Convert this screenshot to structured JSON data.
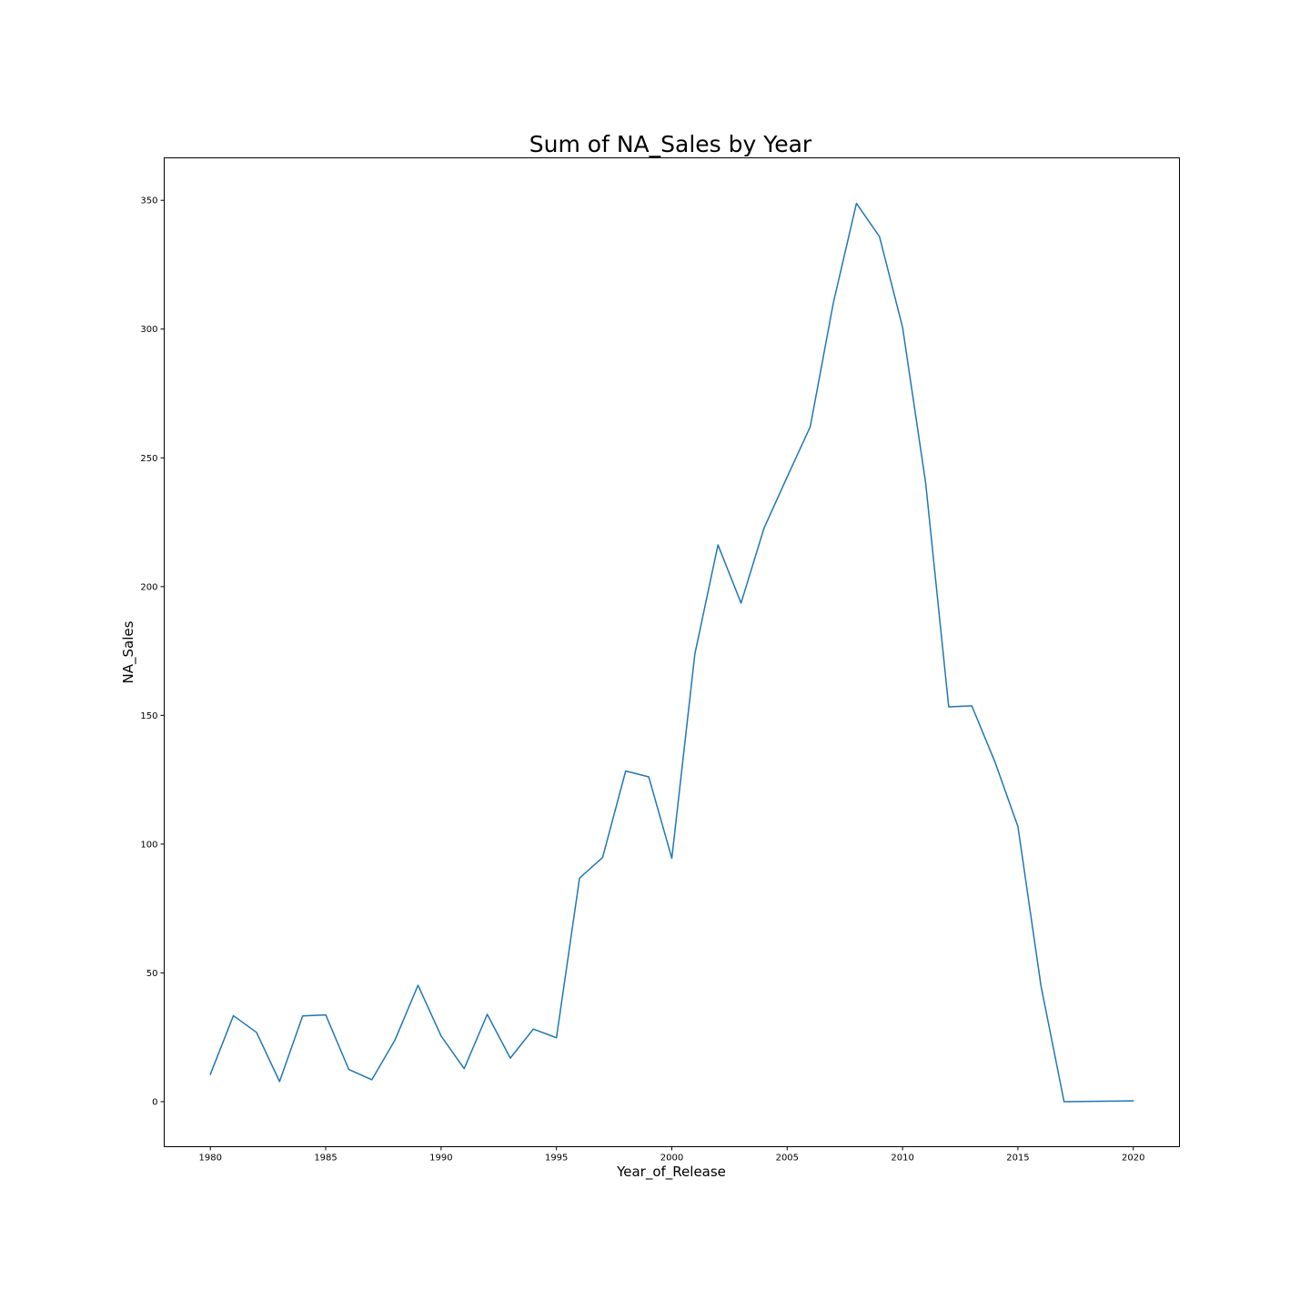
{
  "chart_data": {
    "type": "line",
    "title": "Sum of NA_Sales by Year",
    "xlabel": "Year_of_Release",
    "ylabel": "NA_Sales",
    "xlim": [
      1978,
      2022
    ],
    "ylim": [
      -17.5,
      366.5
    ],
    "xticks": [
      "1980",
      "1985",
      "1990",
      "1995",
      "2000",
      "2005",
      "2010",
      "2015",
      "2020"
    ],
    "yticks": [
      "0",
      "50",
      "100",
      "150",
      "200",
      "250",
      "300",
      "350"
    ],
    "grid": false,
    "legend": "none",
    "series": [
      {
        "color": "#1f77b4",
        "x": [
          1980,
          1981,
          1982,
          1983,
          1984,
          1985,
          1986,
          1987,
          1988,
          1989,
          1990,
          1991,
          1992,
          1993,
          1994,
          1995,
          1996,
          1997,
          1998,
          1999,
          2000,
          2001,
          2002,
          2003,
          2004,
          2005,
          2006,
          2007,
          2008,
          2009,
          2010,
          2011,
          2012,
          2013,
          2014,
          2015,
          2016,
          2017,
          2020
        ],
        "y": [
          10.6,
          33.4,
          26.9,
          7.8,
          33.3,
          33.7,
          12.5,
          8.5,
          23.9,
          45.2,
          25.5,
          12.8,
          33.9,
          16.9,
          28.2,
          24.8,
          86.8,
          94.8,
          128.4,
          126.1,
          94.5,
          173.9,
          216.2,
          193.6,
          222.8,
          242.6,
          262.1,
          310.2,
          348.8,
          335.9,
          300.7,
          240.3,
          153.3,
          153.7,
          132.0,
          106.8,
          44.9,
          0.0,
          0.3
        ]
      }
    ]
  }
}
